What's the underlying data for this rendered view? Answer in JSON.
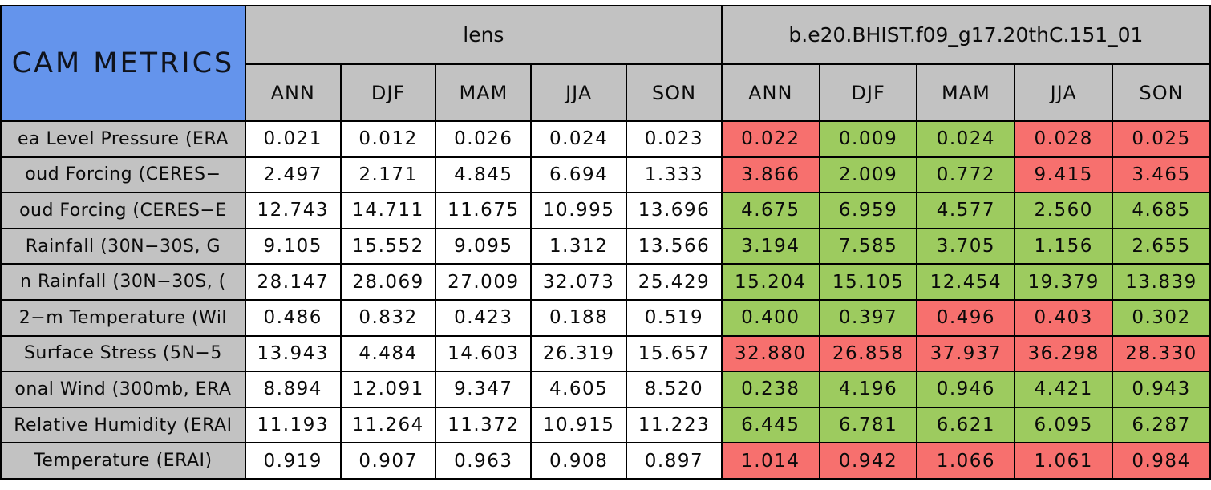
{
  "title": "CAM METRICS",
  "header": {
    "groups": [
      {
        "label": "lens"
      },
      {
        "label": "b.e20.BHIST.f09_g17.20thC.151_01"
      }
    ],
    "seasons": [
      "ANN",
      "DJF",
      "MAM",
      "JJA",
      "SON"
    ]
  },
  "colors": {
    "title_blue": "#6494ec",
    "header_gray": "#c2c2c2",
    "better_green": "#9dcb5f",
    "worse_red": "#f7706e",
    "neutral_white": "#ffffff",
    "border_black": "#000000"
  },
  "chart_data": {
    "type": "table",
    "title": "CAM METRICS",
    "column_groups": [
      "lens",
      "b.e20.BHIST.f09_g17.20thC.151_01"
    ],
    "columns": [
      "ANN",
      "DJF",
      "MAM",
      "JJA",
      "SON"
    ],
    "cell_color_legend": {
      "good": "green",
      "bad": "red",
      "neutral": "white"
    },
    "rows": [
      {
        "label": "ea Level Pressure (ERA",
        "lens": [
          "0.021",
          "0.012",
          "0.026",
          "0.024",
          "0.023"
        ],
        "model": [
          "0.022",
          "0.009",
          "0.024",
          "0.028",
          "0.025"
        ],
        "model_status": [
          "bad",
          "good",
          "good",
          "bad",
          "bad"
        ]
      },
      {
        "label": "oud Forcing (CERES−",
        "lens": [
          "2.497",
          "2.171",
          "4.845",
          "6.694",
          "1.333"
        ],
        "model": [
          "3.866",
          "2.009",
          "0.772",
          "9.415",
          "3.465"
        ],
        "model_status": [
          "bad",
          "good",
          "good",
          "bad",
          "bad"
        ]
      },
      {
        "label": "oud Forcing (CERES−E",
        "lens": [
          "12.743",
          "14.711",
          "11.675",
          "10.995",
          "13.696"
        ],
        "model": [
          "4.675",
          "6.959",
          "4.577",
          "2.560",
          "4.685"
        ],
        "model_status": [
          "good",
          "good",
          "good",
          "good",
          "good"
        ]
      },
      {
        "label": "Rainfall (30N−30S, G",
        "lens": [
          "9.105",
          "15.552",
          "9.095",
          "1.312",
          "13.566"
        ],
        "model": [
          "3.194",
          "7.585",
          "3.705",
          "1.156",
          "2.655"
        ],
        "model_status": [
          "good",
          "good",
          "good",
          "good",
          "good"
        ]
      },
      {
        "label": "n Rainfall (30N−30S, (",
        "lens": [
          "28.147",
          "28.069",
          "27.009",
          "32.073",
          "25.429"
        ],
        "model": [
          "15.204",
          "15.105",
          "12.454",
          "19.379",
          "13.839"
        ],
        "model_status": [
          "good",
          "good",
          "good",
          "good",
          "good"
        ]
      },
      {
        "label": "2−m Temperature (Wil",
        "lens": [
          "0.486",
          "0.832",
          "0.423",
          "0.188",
          "0.519"
        ],
        "model": [
          "0.400",
          "0.397",
          "0.496",
          "0.403",
          "0.302"
        ],
        "model_status": [
          "good",
          "good",
          "bad",
          "bad",
          "good"
        ]
      },
      {
        "label": "Surface Stress (5N−5",
        "lens": [
          "13.943",
          "4.484",
          "14.603",
          "26.319",
          "15.657"
        ],
        "model": [
          "32.880",
          "26.858",
          "37.937",
          "36.298",
          "28.330"
        ],
        "model_status": [
          "bad",
          "bad",
          "bad",
          "bad",
          "bad"
        ]
      },
      {
        "label": "onal Wind (300mb, ERA",
        "lens": [
          "8.894",
          "12.091",
          "9.347",
          "4.605",
          "8.520"
        ],
        "model": [
          "0.238",
          "4.196",
          "0.946",
          "4.421",
          "0.943"
        ],
        "model_status": [
          "good",
          "good",
          "good",
          "good",
          "good"
        ]
      },
      {
        "label": "Relative Humidity (ERAI",
        "lens": [
          "11.193",
          "11.264",
          "11.372",
          "10.915",
          "11.223"
        ],
        "model": [
          "6.445",
          "6.781",
          "6.621",
          "6.095",
          "6.287"
        ],
        "model_status": [
          "good",
          "good",
          "good",
          "good",
          "good"
        ]
      },
      {
        "label": "Temperature (ERAI)",
        "lens": [
          "0.919",
          "0.907",
          "0.963",
          "0.908",
          "0.897"
        ],
        "model": [
          "1.014",
          "0.942",
          "1.066",
          "1.061",
          "0.984"
        ],
        "model_status": [
          "bad",
          "bad",
          "bad",
          "bad",
          "bad"
        ]
      }
    ]
  }
}
